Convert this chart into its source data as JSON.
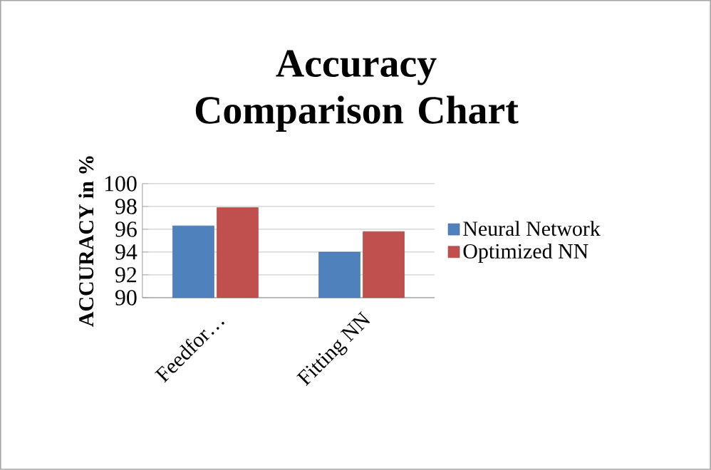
{
  "chart_data": {
    "type": "bar",
    "title": "Accuracy Comparison Chart",
    "ylabel": "ACCURACY in %",
    "categories": [
      "Feedfor…",
      "Fitting NN"
    ],
    "series": [
      {
        "name": "Neural Network",
        "color": "#4f81bd",
        "values": [
          96.3,
          94.0
        ]
      },
      {
        "name": "Optimized NN",
        "color": "#c0504d",
        "values": [
          97.9,
          95.8
        ]
      }
    ],
    "ylim": [
      90,
      100
    ],
    "yticks": [
      90,
      92,
      94,
      96,
      98,
      100
    ],
    "grid": "y",
    "legend": "right"
  }
}
